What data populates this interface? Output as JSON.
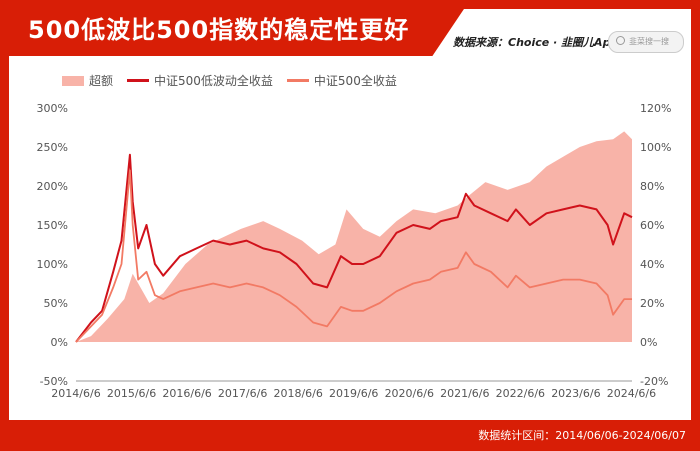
{
  "title": "500低波比500指数的稳定性更好",
  "source": "数据来源：Choice · 韭圈儿App",
  "search_placeholder": "韭菜搜一搜",
  "footer": "数据统计区间：2014/06/06-2024/06/07",
  "colors": {
    "frame": "#d81e06",
    "excess": "#f8b3a8",
    "lowvol": "#d0121b",
    "all500": "#f27a64"
  },
  "chart_data": {
    "type": "area+line",
    "x_ticks": [
      "2014/6/6",
      "2015/6/6",
      "2016/6/6",
      "2017/6/6",
      "2018/6/6",
      "2019/6/6",
      "2020/6/6",
      "2021/6/6",
      "2022/6/6",
      "2023/6/6",
      "2024/6/6"
    ],
    "y_left_ticks": [
      "300%",
      "250%",
      "200%",
      "150%",
      "100%",
      "50%",
      "0%",
      "-50%"
    ],
    "y_right_ticks": [
      "120%",
      "100%",
      "80%",
      "60%",
      "40%",
      "20%",
      "0%",
      "-20%"
    ],
    "y_left_range": [
      -50,
      300
    ],
    "y_right_range": [
      -20,
      120
    ],
    "grid": false,
    "legend_position": "top-left",
    "series": [
      {
        "name": "超额",
        "axis": "right",
        "style": "area",
        "x": [
          2014.43,
          2014.7,
          2015.0,
          2015.3,
          2015.45,
          2015.75,
          2016.0,
          2016.4,
          2016.8,
          2017.4,
          2017.8,
          2018.1,
          2018.5,
          2018.8,
          2019.1,
          2019.3,
          2019.6,
          2019.9,
          2020.2,
          2020.5,
          2020.9,
          2021.3,
          2021.5,
          2021.8,
          2022.2,
          2022.6,
          2022.9,
          2023.2,
          2023.5,
          2023.8,
          2024.1,
          2024.3,
          2024.44
        ],
        "values": [
          0,
          3,
          12,
          22,
          35,
          20,
          25,
          40,
          50,
          58,
          62,
          58,
          52,
          45,
          50,
          68,
          58,
          54,
          62,
          68,
          66,
          70,
          75,
          82,
          78,
          82,
          90,
          95,
          100,
          103,
          104,
          108,
          104
        ]
      },
      {
        "name": "中证500低波动全收益",
        "axis": "left",
        "style": "line",
        "x": [
          2014.43,
          2014.7,
          2014.9,
          2015.1,
          2015.25,
          2015.4,
          2015.45,
          2015.55,
          2015.7,
          2015.85,
          2016.0,
          2016.3,
          2016.6,
          2016.9,
          2017.2,
          2017.5,
          2017.8,
          2018.1,
          2018.4,
          2018.7,
          2018.95,
          2019.2,
          2019.4,
          2019.6,
          2019.9,
          2020.2,
          2020.5,
          2020.8,
          2021.0,
          2021.3,
          2021.45,
          2021.6,
          2021.9,
          2022.2,
          2022.35,
          2022.6,
          2022.9,
          2023.2,
          2023.5,
          2023.8,
          2024.0,
          2024.1,
          2024.3,
          2024.44
        ],
        "values": [
          0,
          25,
          40,
          90,
          130,
          240,
          180,
          120,
          150,
          100,
          85,
          110,
          120,
          130,
          125,
          130,
          120,
          115,
          100,
          75,
          70,
          110,
          100,
          100,
          110,
          140,
          150,
          145,
          155,
          160,
          190,
          175,
          165,
          155,
          170,
          150,
          165,
          170,
          175,
          170,
          150,
          125,
          165,
          160
        ]
      },
      {
        "name": "中证500全收益",
        "axis": "left",
        "style": "line",
        "x": [
          2014.43,
          2014.7,
          2014.9,
          2015.1,
          2015.25,
          2015.4,
          2015.45,
          2015.55,
          2015.7,
          2015.85,
          2016.0,
          2016.3,
          2016.6,
          2016.9,
          2017.2,
          2017.5,
          2017.8,
          2018.1,
          2018.4,
          2018.7,
          2018.95,
          2019.2,
          2019.4,
          2019.6,
          2019.9,
          2020.2,
          2020.5,
          2020.8,
          2021.0,
          2021.3,
          2021.45,
          2021.6,
          2021.9,
          2022.2,
          2022.35,
          2022.6,
          2022.9,
          2023.2,
          2023.5,
          2023.8,
          2024.0,
          2024.1,
          2024.3,
          2024.44
        ],
        "values": [
          0,
          20,
          35,
          70,
          100,
          220,
          150,
          80,
          90,
          60,
          55,
          65,
          70,
          75,
          70,
          75,
          70,
          60,
          45,
          25,
          20,
          45,
          40,
          40,
          50,
          65,
          75,
          80,
          90,
          95,
          115,
          100,
          90,
          70,
          85,
          70,
          75,
          80,
          80,
          75,
          60,
          35,
          55,
          55
        ]
      }
    ]
  }
}
